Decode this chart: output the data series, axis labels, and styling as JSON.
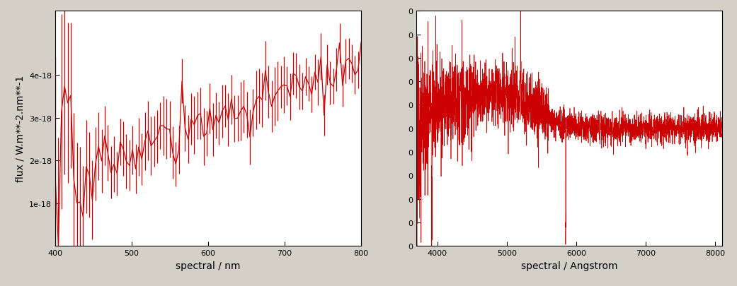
{
  "left_xlabel": "spectral / nm",
  "left_ylabel": "flux / W.m**-2.nm**-1",
  "left_xlim": [
    400,
    800
  ],
  "left_ylim": [
    0,
    5.5e-18
  ],
  "right_xlabel": "spectral / Angstrom",
  "right_xlim": [
    3700,
    8100
  ],
  "right_ylim": [
    -1.2e-17,
    1e-17
  ],
  "line_color": "#cc0000",
  "bg_color": "#d4d0c8",
  "plot_bg": "#ffffff",
  "fontsize": 10
}
